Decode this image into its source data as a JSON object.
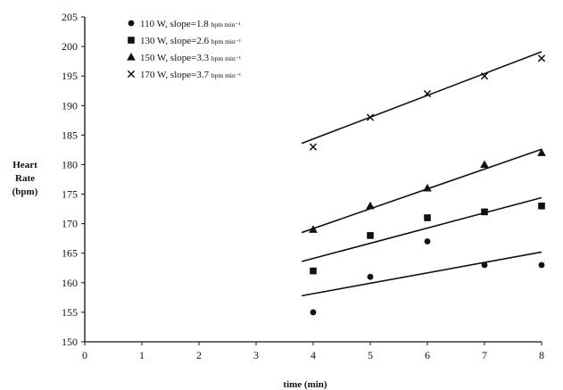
{
  "chart_data": {
    "type": "scatter",
    "title": "",
    "xlabel": "time (min)",
    "ylabel_lines": [
      "Heart",
      "Rate",
      "(bpm)"
    ],
    "xlim": [
      0,
      8
    ],
    "ylim": [
      150,
      205
    ],
    "xticks": [
      0,
      1,
      2,
      3,
      4,
      5,
      6,
      7,
      8
    ],
    "yticks": [
      150,
      155,
      160,
      165,
      170,
      175,
      180,
      185,
      190,
      195,
      200,
      205
    ],
    "grid": false,
    "legend_position": "top-left",
    "series": [
      {
        "name": "110 W, slope=1.8",
        "unit": "bpm min⁻¹",
        "marker": "circle",
        "x": [
          4,
          5,
          6,
          7,
          8
        ],
        "y": [
          155,
          161,
          167,
          163,
          163
        ],
        "fit": {
          "x": [
            3.8,
            8
          ],
          "y": [
            157.8,
            165.2
          ]
        }
      },
      {
        "name": "130 W, slope=2.6",
        "unit": "bpm min⁻¹",
        "marker": "square",
        "x": [
          4,
          5,
          6,
          7,
          8
        ],
        "y": [
          162,
          168,
          171,
          172,
          173
        ],
        "fit": {
          "x": [
            3.8,
            8
          ],
          "y": [
            163.6,
            174.4
          ]
        }
      },
      {
        "name": "150 W, slope=3.3",
        "unit": "bpm min⁻¹",
        "marker": "triangle",
        "x": [
          4,
          5,
          6,
          7,
          8
        ],
        "y": [
          169,
          173,
          176,
          180,
          182
        ],
        "fit": {
          "x": [
            3.8,
            8
          ],
          "y": [
            168.5,
            182.6
          ]
        }
      },
      {
        "name": "170 W, slope=3.7",
        "unit": "bpm min⁻¹",
        "marker": "x",
        "x": [
          4,
          5,
          6,
          7,
          8
        ],
        "y": [
          183,
          188,
          192,
          195,
          198
        ],
        "fit": {
          "x": [
            3.8,
            8
          ],
          "y": [
            183.6,
            199.1
          ]
        }
      }
    ]
  }
}
